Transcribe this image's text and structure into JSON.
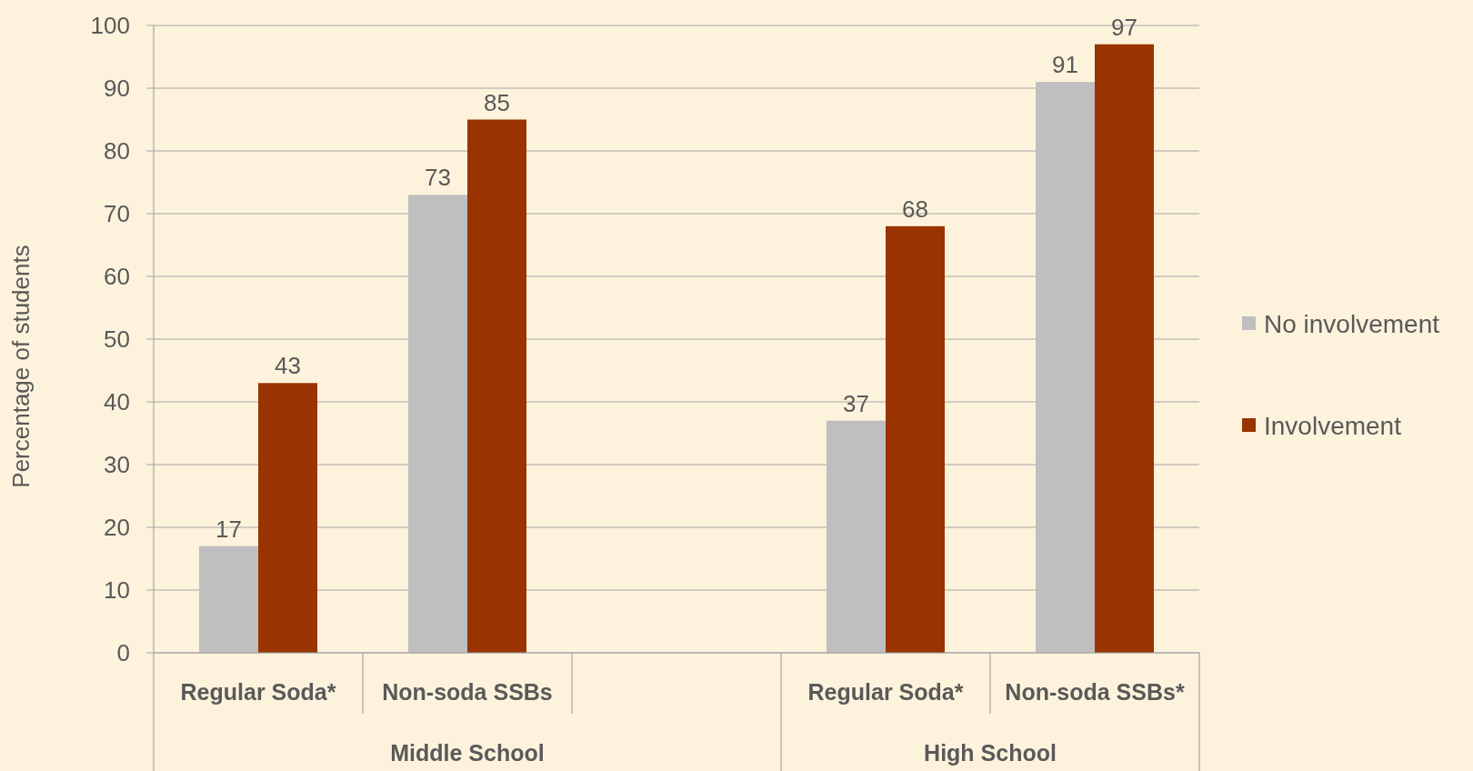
{
  "chart_data": {
    "type": "bar",
    "ylabel": "Percentage of students",
    "categories": [
      "Regular Soda*",
      "Non-soda SSBs",
      null,
      "Regular Soda*",
      "Non-soda SSBs*"
    ],
    "series": [
      {
        "name": "No involvement",
        "color": "#bfbfbf",
        "values": [
          17,
          73,
          null,
          37,
          91
        ]
      },
      {
        "name": "Involvement",
        "color": "#993300",
        "values": [
          43,
          85,
          null,
          68,
          97
        ]
      }
    ],
    "annotations": [
      "Middle School",
      "High School"
    ],
    "ylim": [
      0,
      100
    ],
    "yticks": [
      0,
      10,
      20,
      30,
      40,
      50,
      60,
      70,
      80,
      90,
      100
    ],
    "grid": "y",
    "legend": "right",
    "data_labels": true
  }
}
